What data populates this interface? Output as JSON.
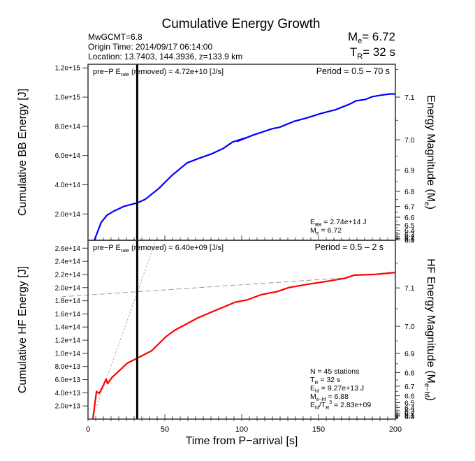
{
  "header": {
    "title": "Cumulative Energy Growth",
    "info_lines": [
      "MwGCMT=6.8",
      "Origin Time: 2014/09/17 06:14:00",
      "Location: 13.7403, 144.3936, z=133.9 km"
    ],
    "me_label": "M",
    "me_sub": "e",
    "me_value": "= 6.72",
    "tr_label": "T",
    "tr_sub": "R",
    "tr_value": "= 32 s"
  },
  "chart_data": [
    {
      "type": "line",
      "id": "bb",
      "ylabel": "Cumulative BB Energy [J]",
      "y2label_main": "Energy Magnitude (M",
      "y2label_sub": "e",
      "y2label_end": ")",
      "xlim": [
        0,
        200
      ],
      "ylim": [
        20000000000000.0,
        1225000000000000.0
      ],
      "yticks": [
        200000000000000.0,
        400000000000000.0,
        600000000000000.0,
        800000000000000.0,
        1000000000000000.0,
        1200000000000000.0
      ],
      "ytick_labels": [
        "2.0e+14",
        "4.0e+14",
        "6.0e+14",
        "8.0e+14",
        "1.0e+15",
        "1.2e+15"
      ],
      "mag_ticks": [
        7.1,
        7.0,
        6.9,
        6.8,
        6.7,
        6.6,
        6.5,
        6.4,
        6.3,
        6.2,
        6.1,
        6.0
      ],
      "mag_tick_labels": [
        "7.1",
        "7.0",
        "6.9",
        "6.8",
        "6.7",
        "6.6",
        "6.5",
        "6.4",
        "6.3",
        "6.2",
        "6.1",
        "6.0"
      ],
      "mag_offset": 4.35,
      "color": "#0000ff",
      "rupture_time": 32,
      "annot_prep_main": "pre−P E",
      "annot_prep_sub": "rate",
      "annot_prep_rest": " (removed) = 4.72e+10 [J/s]",
      "period": "Period = 0.5 – 70 s",
      "stats": [
        {
          "main": "E",
          "sub": "BB",
          "rest": " = 2.74e+14 J"
        },
        {
          "main": "M",
          "sub": "e",
          "rest": " = 6.72"
        }
      ],
      "x": [
        4.1,
        8.6,
        12.3,
        16.8,
        23.6,
        32.3,
        37.3,
        45.9,
        54.1,
        59.5,
        64.5,
        71.4,
        80.5,
        88.2,
        94.1,
        101.4,
        97.3,
        107.7,
        120.0,
        124.5,
        134.5,
        141.4,
        151.8,
        160.9,
        170.0,
        174.5,
        180.5,
        185.0,
        190.5,
        196.4,
        200.0
      ],
      "y": [
        5000000000000.0,
        143000000000000.0,
        191000000000000.0,
        220000000000000.0,
        253000000000000.0,
        277000000000000.0,
        301000000000000.0,
        373000000000000.0,
        459000000000000.0,
        507000000000000.0,
        550000000000000.0,
        578000000000000.0,
        612000000000000.0,
        650000000000000.0,
        693000000000000.0,
        717000000000000.0,
        698000000000000.0,
        741000000000000.0,
        784000000000000.0,
        793000000000000.0,
        836000000000000.0,
        855000000000000.0,
        889000000000000.0,
        913000000000000.0,
        951000000000000.0,
        975000000000000.0,
        984000000000000.0,
        1003000000000000.0,
        1013000000000000.0,
        1022000000000000.0,
        1022000000000000.0
      ]
    },
    {
      "type": "line",
      "id": "hf",
      "ylabel": "Cumulative HF Energy [J]",
      "y2label_main": "HF Energy Magnitude (M",
      "y2label_sub": "e−hf",
      "y2label_end": ")",
      "xlabel": "Time from P−arrival [s]",
      "xlim": [
        0,
        200
      ],
      "xticks": [
        0,
        50,
        100,
        150,
        200
      ],
      "xtick_labels": [
        "0",
        "50",
        "100",
        "150",
        "200"
      ],
      "ylim": [
        0,
        272000000000000.0
      ],
      "yticks": [
        20000000000000.0,
        40000000000000.0,
        60000000000000.0,
        80000000000000.0,
        100000000000000.0,
        120000000000000.0,
        140000000000000.0,
        160000000000000.0,
        180000000000000.0,
        200000000000000.0,
        220000000000000.0,
        240000000000000.0,
        260000000000000.0
      ],
      "ytick_labels": [
        "2.0e+13",
        "4.0e+13",
        "6.0e+13",
        "8.0e+13",
        "1.0e+14",
        "1.2e+14",
        "1.4e+14",
        "1.6e+14",
        "1.8e+14",
        "2.0e+14",
        "2.2e+14",
        "2.4e+14",
        "2.6e+14"
      ],
      "mag_ticks": [
        7.1,
        7.0,
        6.9,
        6.8,
        6.7,
        6.6,
        6.5,
        6.4,
        6.3,
        6.2,
        6.1,
        6.0
      ],
      "mag_tick_labels": [
        "7.1",
        "7.0",
        "6.9",
        "6.8",
        "6.7",
        "6.6",
        "6.5",
        "6.4",
        "6.3",
        "6.2",
        "6.1",
        "6.0"
      ],
      "mag_offset": 3.65,
      "color": "#ff0000",
      "rupture_time": 32,
      "annot_prep_main": "pre−P E",
      "annot_prep_sub": "rate",
      "annot_prep_rest": " (removed) = 6.40e+09 [J/s]",
      "period": "Period = 0.5 – 2 s",
      "stats": [
        {
          "main": "N = 45 stations",
          "sub": "",
          "rest": ""
        },
        {
          "main": "T",
          "sub": "R",
          "rest": " = 32  s"
        },
        {
          "main": "E",
          "sub": "hf",
          "rest": " = 9.27e+13 J"
        },
        {
          "main": "M",
          "sub": "e−hf",
          "rest": " = 6.88"
        },
        {
          "main": "E",
          "sub": "hf",
          "rest": "/T",
          "sub2": "R",
          "sup": "3",
          "rest2": " =  2.83e+09"
        }
      ],
      "x": [
        3.2,
        5.5,
        7.3,
        9.5,
        11.8,
        12.7,
        15.5,
        25.5,
        32.3,
        41.4,
        50.5,
        56.4,
        71.4,
        80.5,
        95.9,
        103.2,
        112.3,
        123.2,
        130.5,
        142.7,
        156.4,
        166.8,
        173.2,
        186.8,
        200.0
      ],
      "y": [
        300000000000.0,
        42000000000000.0,
        39000000000000.0,
        49000000000000.0,
        61000000000000.0,
        54000000000000.0,
        63000000000000.0,
        85000000000000.0,
        93000000000000.0,
        104000000000000.0,
        125000000000000.0,
        135000000000000.0,
        154000000000000.0,
        163000000000000.0,
        178000000000000.0,
        181000000000000.0,
        189000000000000.0,
        194000000000000.0,
        200000000000000.0,
        205000000000000.0,
        210000000000000.0,
        214000000000000.0,
        219000000000000.0,
        220000000000000.0,
        223000000000000.0
      ],
      "fit_lines": [
        {
          "style": "dashed",
          "x": [
            -17.3,
            168.0
          ],
          "y": [
            186100000000000.0,
            214900000000000.0
          ]
        },
        {
          "style": "dotted",
          "x": [
            2.7,
            44.1
          ],
          "y": [
            0.0,
            272000000000000.0
          ]
        }
      ]
    }
  ]
}
